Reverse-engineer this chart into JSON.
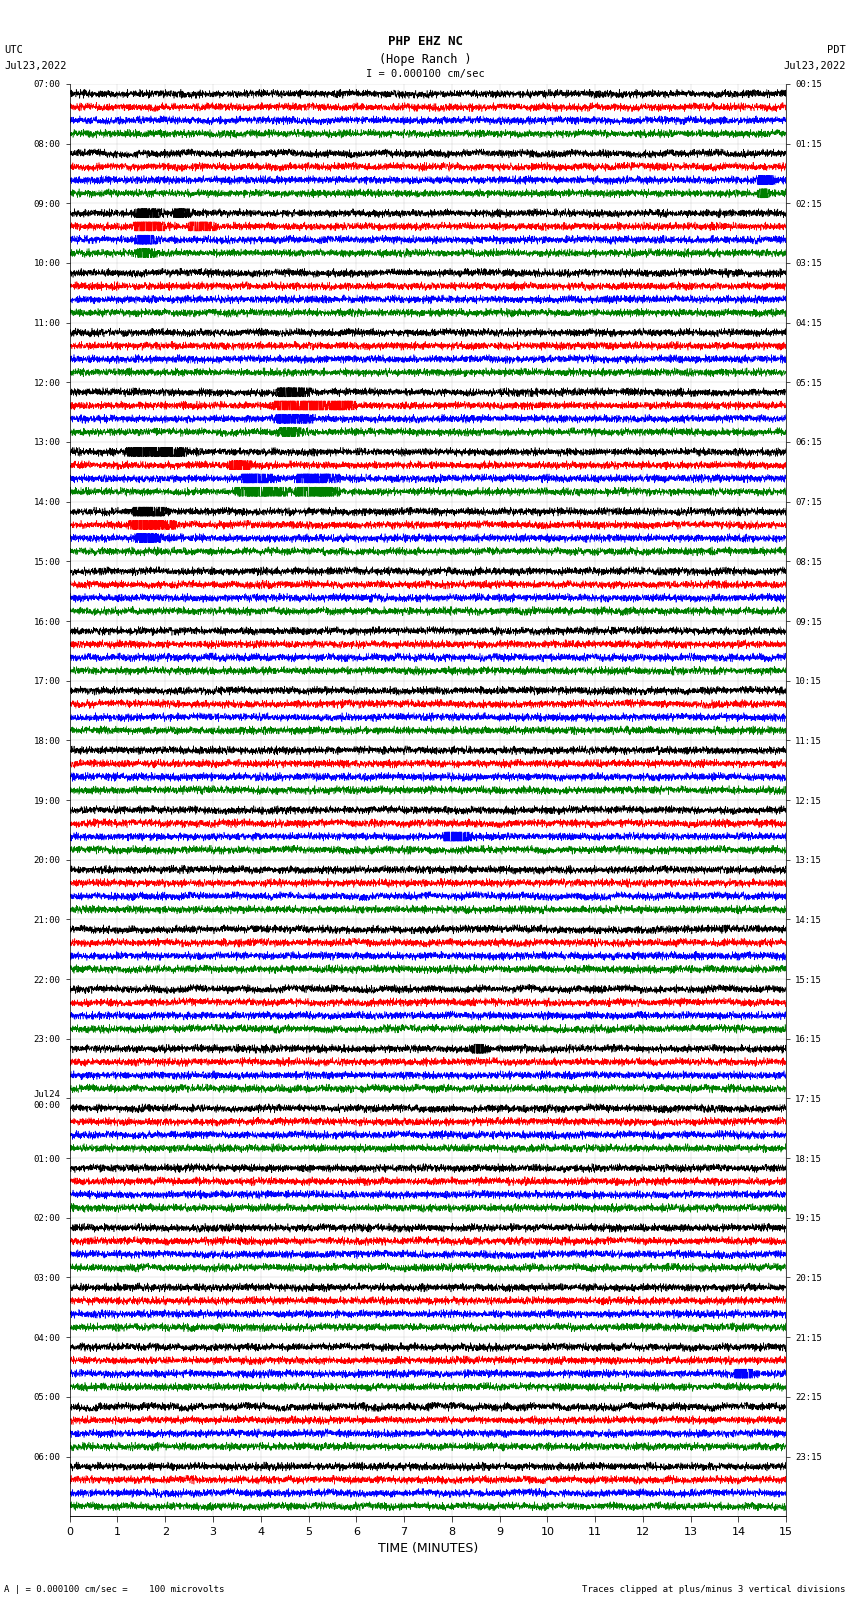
{
  "title_line1": "PHP EHZ NC",
  "title_line2": "(Hope Ranch )",
  "title_scale": "I = 0.000100 cm/sec",
  "left_timezone": "UTC",
  "left_date": "Jul23,2022",
  "right_timezone": "PDT",
  "right_date": "Jul23,2022",
  "bottom_label": "TIME (MINUTES)",
  "bottom_note_left": "A | = 0.000100 cm/sec =    100 microvolts",
  "bottom_note_right": "Traces clipped at plus/minus 3 vertical divisions",
  "xlabel_ticks": [
    0,
    1,
    2,
    3,
    4,
    5,
    6,
    7,
    8,
    9,
    10,
    11,
    12,
    13,
    14,
    15
  ],
  "left_time_labels": [
    "07:00",
    "08:00",
    "09:00",
    "10:00",
    "11:00",
    "12:00",
    "13:00",
    "14:00",
    "15:00",
    "16:00",
    "17:00",
    "18:00",
    "19:00",
    "20:00",
    "21:00",
    "22:00",
    "23:00",
    "Jul24\n00:00",
    "01:00",
    "02:00",
    "03:00",
    "04:00",
    "05:00",
    "06:00"
  ],
  "right_time_labels": [
    "00:15",
    "01:15",
    "02:15",
    "03:15",
    "04:15",
    "05:15",
    "06:15",
    "07:15",
    "08:15",
    "09:15",
    "10:15",
    "11:15",
    "12:15",
    "13:15",
    "14:15",
    "15:15",
    "16:15",
    "17:15",
    "18:15",
    "19:15",
    "20:15",
    "21:15",
    "22:15",
    "23:15"
  ],
  "n_rows": 24,
  "traces_per_row": 4,
  "trace_colors": [
    "black",
    "red",
    "blue",
    "green"
  ],
  "bg_color": "white",
  "plot_bg_color": "white",
  "noise_amplitude": 0.028,
  "minutes_per_row": 15,
  "seed": 42,
  "lw": 0.4
}
